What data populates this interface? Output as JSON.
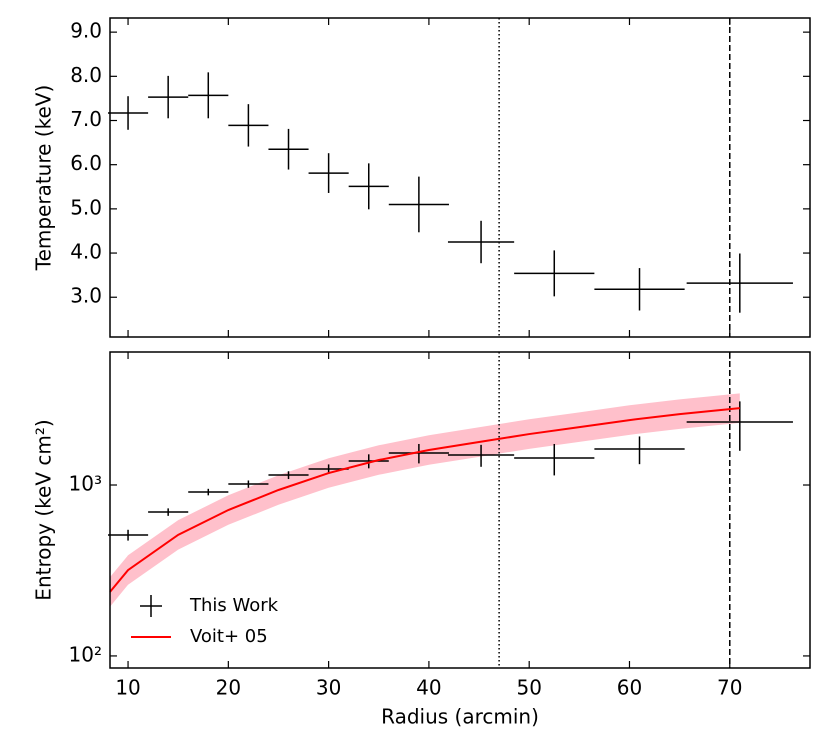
{
  "chart_data": [
    {
      "type": "errorbar",
      "ylabel": "Temperature (keV)",
      "xlim": [
        8.2,
        78
      ],
      "xticks": [
        10,
        20,
        30,
        40,
        50,
        60,
        70
      ],
      "xticklabels": false,
      "ylim": [
        2.1,
        9.32
      ],
      "yticks": [
        {
          "value": 3,
          "label": "3.0"
        },
        {
          "value": 4,
          "label": "4.0"
        },
        {
          "value": 5,
          "label": "5.0"
        },
        {
          "value": 6,
          "label": "6.0"
        },
        {
          "value": 7,
          "label": "7.0"
        },
        {
          "value": 8,
          "label": "8.0"
        },
        {
          "value": 9,
          "label": "9.0"
        }
      ],
      "vlines": [
        {
          "x": 47,
          "style": "dotted"
        },
        {
          "x": 70,
          "style": "dashed"
        }
      ],
      "series": [
        {
          "color": "#000000",
          "x": [
            10,
            14,
            18,
            22,
            26,
            30,
            34,
            39,
            45.2,
            52.5,
            61,
            71
          ],
          "xerr": [
            2,
            2,
            2,
            2,
            2,
            2,
            2,
            3,
            3.3,
            4,
            4.5,
            5.3
          ],
          "values": [
            7.17,
            7.53,
            7.57,
            6.89,
            6.35,
            5.81,
            5.51,
            5.1,
            4.25,
            3.54,
            3.18,
            3.32
          ],
          "yerr": [
            0.38,
            0.48,
            0.52,
            0.48,
            0.46,
            0.45,
            0.52,
            0.63,
            0.48,
            0.52,
            0.48,
            0.67
          ]
        }
      ]
    },
    {
      "type": "errorbar",
      "ylabel": "Entropy (keV cm²)",
      "xlabel": "Radius (arcmin)",
      "xlim": [
        8.2,
        78
      ],
      "xticks": [
        10,
        20,
        30,
        40,
        50,
        60,
        70
      ],
      "xticklabels": true,
      "log_y": true,
      "ylim": [
        85,
        6000
      ],
      "yticks": [
        {
          "value": 100,
          "label": "10²"
        },
        {
          "value": 1000,
          "label": "10³"
        }
      ],
      "vlines": [
        {
          "x": 47,
          "style": "dotted"
        },
        {
          "x": 70,
          "style": "dashed"
        }
      ],
      "legend": "lower left",
      "series": [
        {
          "name": "This Work",
          "color": "#000000",
          "x": [
            10,
            14,
            18,
            22,
            26,
            30,
            34,
            39,
            45.2,
            52.5,
            61,
            71
          ],
          "xerr": [
            2,
            2,
            2,
            2,
            2,
            2,
            2,
            3,
            3.3,
            4,
            4.5,
            5.3
          ],
          "values": [
            510,
            695,
            910,
            1013,
            1144,
            1240,
            1382,
            1538,
            1498,
            1438,
            1624,
            2335
          ],
          "yerr": [
            37,
            35,
            40,
            50,
            60,
            80,
            130,
            200,
            220,
            300,
            300,
            750
          ]
        },
        {
          "name": "Voit+ 05",
          "color": "#ff0000",
          "band_color": "#ffc0cb",
          "x": [
            8.2,
            10,
            15,
            20,
            25,
            30,
            35,
            40,
            45,
            50,
            55,
            60,
            65,
            71
          ],
          "values": [
            237,
            318,
            511,
            714,
            935,
            1175,
            1400,
            1602,
            1784,
            1986,
            2181,
            2398,
            2600,
            2818
          ],
          "band_low": [
            194,
            261,
            419,
            585,
            766,
            963,
            1148,
            1313,
            1462,
            1628,
            1788,
            1966,
            2131,
            2310
          ],
          "band_high": [
            289,
            388,
            623,
            871,
            1141,
            1434,
            1708,
            1954,
            2176,
            2423,
            2661,
            2926,
            3172,
            3438
          ]
        }
      ]
    }
  ]
}
